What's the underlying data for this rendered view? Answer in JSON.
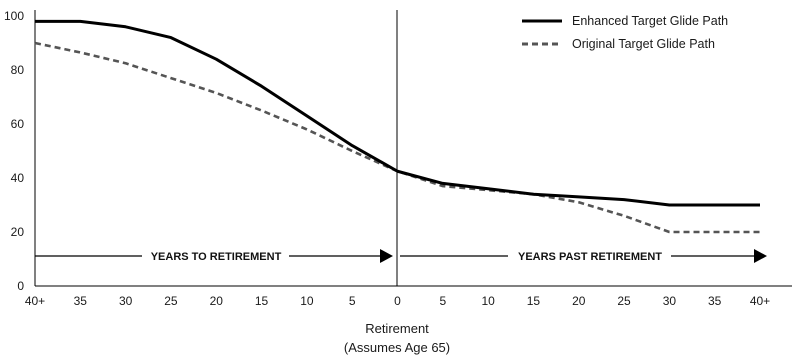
{
  "chart_data": {
    "type": "line",
    "x_tick_labels": [
      "40+",
      "35",
      "30",
      "25",
      "20",
      "15",
      "10",
      "5",
      "0",
      "5",
      "10",
      "15",
      "20",
      "25",
      "30",
      "35",
      "40+"
    ],
    "ylim": [
      0,
      100
    ],
    "y_ticks": [
      0,
      20,
      40,
      60,
      80,
      100
    ],
    "xlabel": [
      "Retirement",
      "(Assumes Age 65)"
    ],
    "series": [
      {
        "name": "Enhanced Target Glide Path",
        "color": "#000000",
        "style": "solid",
        "values": [
          98,
          98,
          96,
          92,
          84,
          74,
          63,
          52,
          42.5,
          38,
          36,
          34,
          33,
          32,
          30,
          30,
          30
        ]
      },
      {
        "name": "Original Target Glide Path",
        "color": "#555555",
        "style": "dashed",
        "values": [
          90,
          86.5,
          82.5,
          77,
          71.5,
          65,
          58,
          50,
          42.5,
          37,
          35.5,
          34,
          31,
          26,
          20,
          20,
          20
        ]
      }
    ],
    "annotations": {
      "left_arrow": "YEARS TO RETIREMENT",
      "right_arrow": "YEARS PAST RETIREMENT"
    },
    "legend_position": "top-right",
    "grid": false
  }
}
